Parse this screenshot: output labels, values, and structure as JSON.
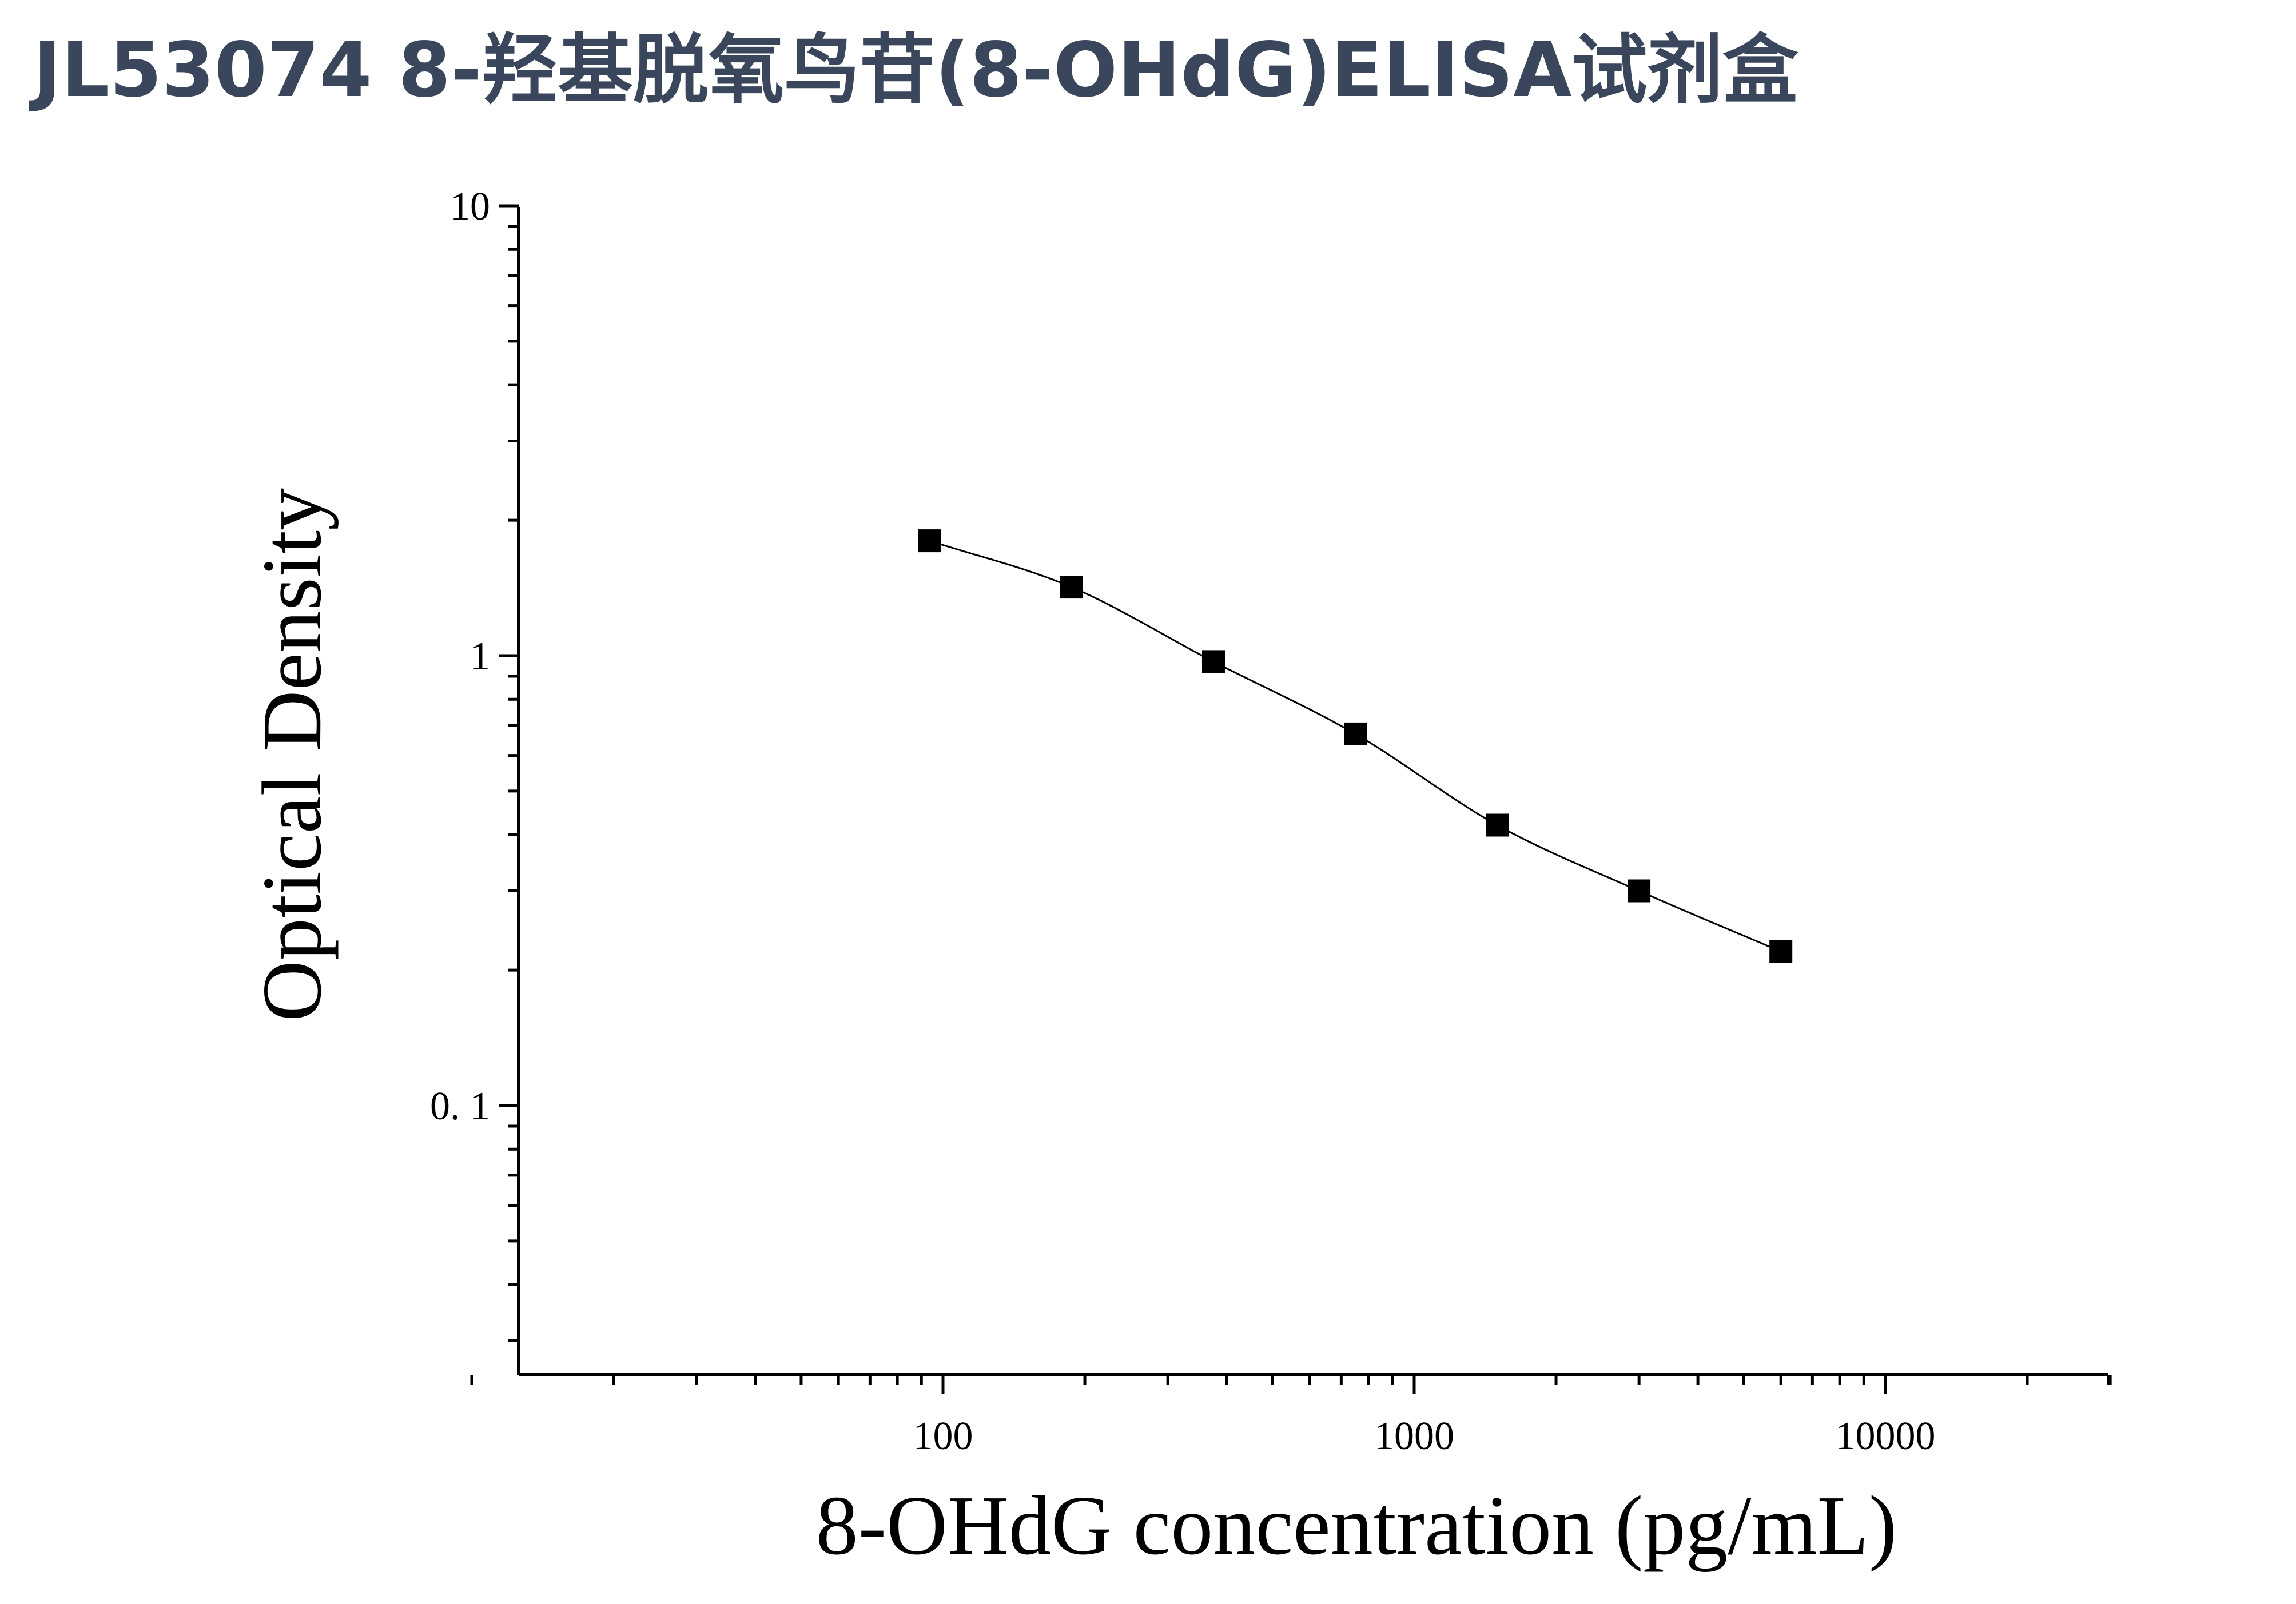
{
  "page": {
    "title": "JL53074 8-羟基脱氧鸟苷(8-OHdG)ELISA试剂盒"
  },
  "chart_data": {
    "type": "scatter",
    "title": "",
    "xlabel": "8-OHdG concentration (pg/mL)",
    "ylabel": "Optical Density",
    "x_scale": "log",
    "y_scale": "log",
    "xlim": [
      10,
      30000
    ],
    "ylim": [
      0.027,
      10
    ],
    "x_tick_labels": [
      "100",
      "1000",
      "10000"
    ],
    "y_tick_labels": [
      "10",
      "1",
      "0. 1"
    ],
    "grid": false,
    "legend": "none",
    "series": [
      {
        "marker": "square",
        "color": "#000000",
        "x": [
          93.75,
          187.5,
          375,
          750,
          1500,
          3000,
          6000
        ],
        "y": [
          1.8,
          1.42,
          0.97,
          0.67,
          0.42,
          0.3,
          0.22
        ]
      }
    ],
    "fit_curve": {
      "color": "#000000",
      "style": "solid smooth line through points"
    }
  }
}
